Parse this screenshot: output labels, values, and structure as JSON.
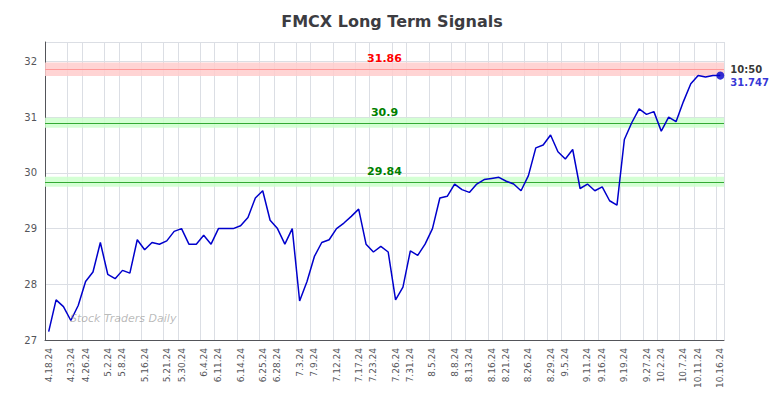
{
  "chart_data": {
    "type": "line",
    "title": "FMCX Long Term Signals",
    "categories": [
      "4.18.24",
      null,
      null,
      "4.23.24",
      null,
      "4.26.24",
      null,
      null,
      "5.2.24",
      null,
      "5.8.24",
      null,
      null,
      "5.16.24",
      null,
      null,
      "5.21.24",
      null,
      "5.30.24",
      null,
      null,
      "6.4.24",
      null,
      "6.11.24",
      null,
      null,
      "6.14.24",
      null,
      null,
      "6.25.24",
      null,
      "6.28.24",
      null,
      null,
      "7.3.24",
      null,
      "7.9.24",
      null,
      null,
      "7.12.24",
      null,
      null,
      "7.17.24",
      null,
      "7.23.24",
      null,
      null,
      "7.26.24",
      null,
      "7.31.24",
      null,
      null,
      "8.5.24",
      null,
      null,
      "8.8.24",
      null,
      "8.13.24",
      null,
      null,
      "8.16.24",
      null,
      "8.21.24",
      null,
      null,
      "8.26.24",
      null,
      null,
      "8.29.24",
      null,
      "9.5.24",
      null,
      null,
      "9.11.24",
      null,
      "9.16.24",
      null,
      null,
      "9.19.24",
      null,
      null,
      "9.27.24",
      null,
      "10.2.24",
      null,
      null,
      "10.7.24",
      null,
      "10.11.24",
      null,
      null,
      "10.16.24"
    ],
    "values": [
      27.15,
      27.72,
      27.6,
      27.35,
      27.62,
      28.05,
      28.22,
      28.75,
      28.18,
      28.1,
      28.25,
      28.2,
      28.8,
      28.62,
      28.75,
      28.72,
      28.78,
      28.95,
      29.0,
      28.72,
      28.72,
      28.88,
      28.72,
      29.0,
      29.0,
      29.0,
      29.05,
      29.2,
      29.55,
      29.68,
      29.15,
      29.0,
      28.72,
      29.0,
      27.7,
      28.05,
      28.5,
      28.75,
      28.8,
      29.0,
      29.1,
      29.22,
      29.35,
      28.72,
      28.58,
      28.68,
      28.58,
      27.72,
      27.95,
      28.6,
      28.52,
      28.72,
      29.0,
      29.55,
      29.58,
      29.8,
      29.7,
      29.65,
      29.8,
      29.88,
      29.9,
      29.92,
      29.85,
      29.8,
      29.68,
      29.95,
      30.45,
      30.5,
      30.68,
      30.38,
      30.25,
      30.42,
      29.72,
      29.8,
      29.68,
      29.75,
      29.5,
      29.42,
      30.6,
      30.9,
      31.15,
      31.05,
      31.1,
      30.75,
      31.0,
      30.92,
      31.28,
      31.6,
      31.75,
      31.72,
      31.75,
      31.747
    ],
    "color": "#0000cc",
    "ylim": [
      27,
      32.35
    ],
    "yticks": [
      27,
      28,
      29,
      30,
      31,
      32
    ],
    "grid": true,
    "levels": [
      {
        "value": 31.86,
        "label": "31.86",
        "band": [
          31.74,
          31.98
        ],
        "color": "#ff9999",
        "fill_color": "#ffcccc",
        "label_color": "red"
      },
      {
        "value": 30.9,
        "label": "30.9",
        "band": [
          30.81,
          30.99
        ],
        "color": "#33aa33",
        "fill_color": "#ccffcc",
        "label_color": "green"
      },
      {
        "value": 29.84,
        "label": "29.84",
        "band": [
          29.75,
          29.93
        ],
        "color": "#33aa33",
        "fill_color": "#ccffcc",
        "label_color": "green"
      }
    ],
    "last_point": {
      "value": 31.747,
      "label": "31.747",
      "time": "10:50",
      "color": "#0000cc"
    },
    "watermark": "Stock Traders Daily"
  }
}
